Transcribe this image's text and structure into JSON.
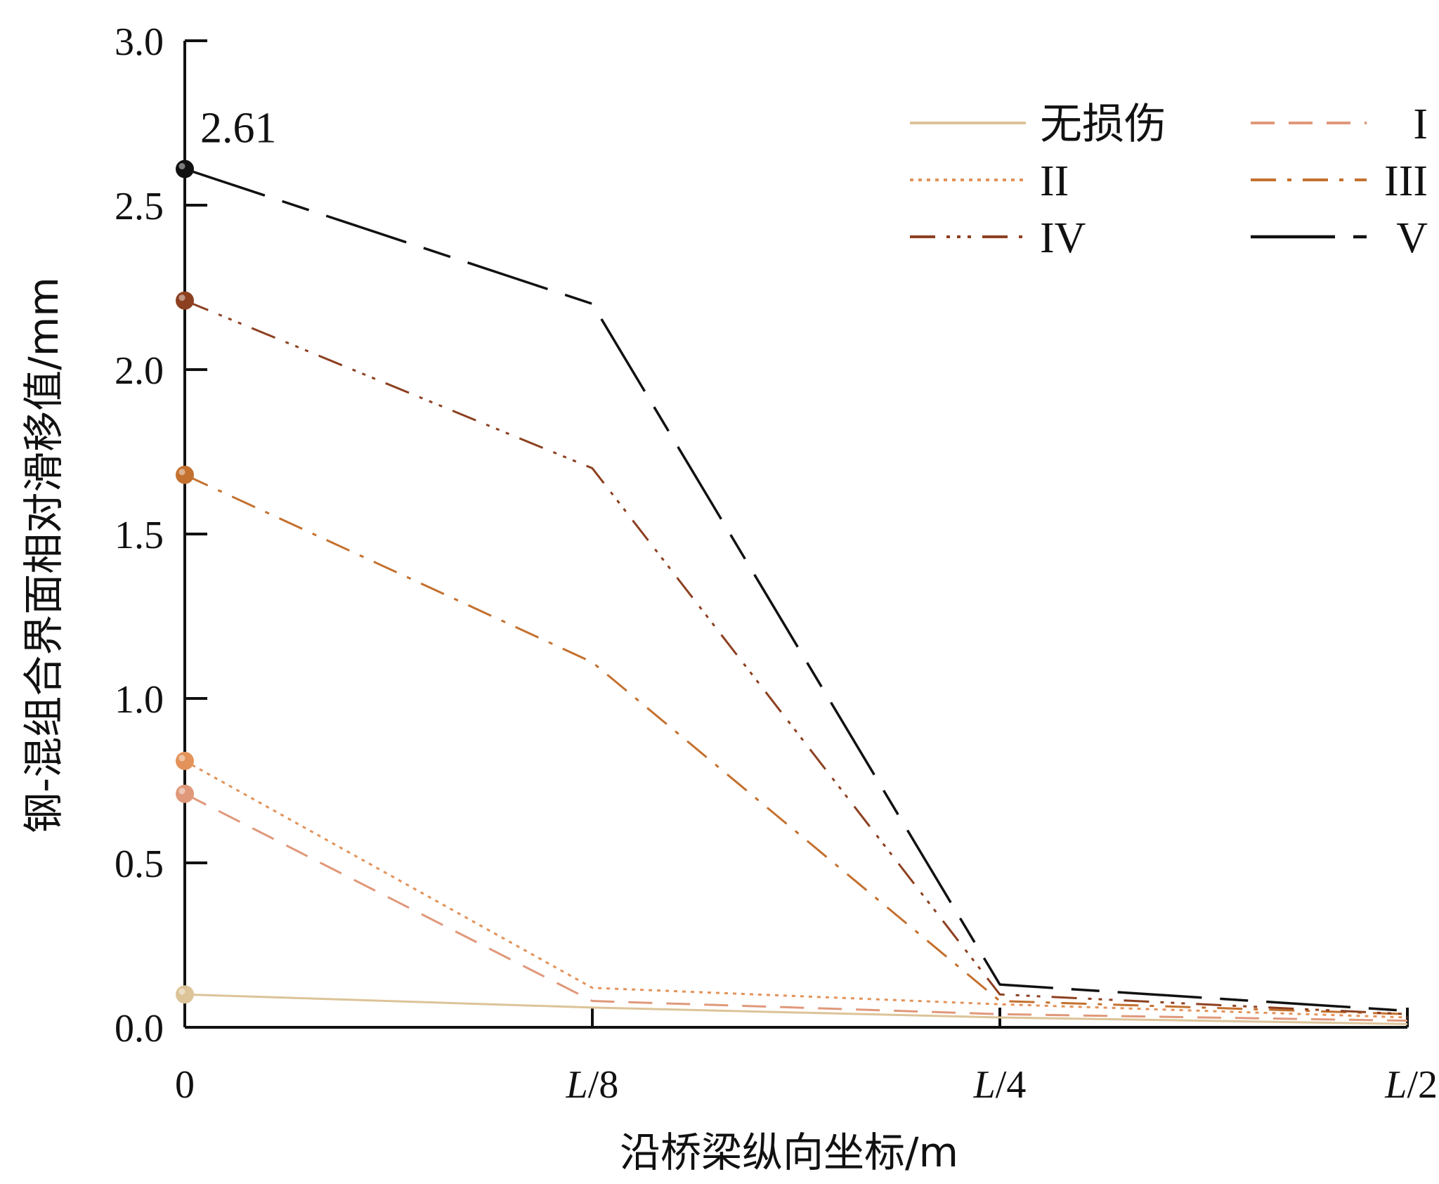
{
  "chart_data": {
    "type": "line",
    "title": "",
    "xlabel": "沿桥梁纵向坐标/m",
    "ylabel": "钢-混组合界面相对滑移值/mm",
    "ylim": [
      0,
      3.0
    ],
    "y_ticks": [
      "0.0",
      "0.5",
      "1.0",
      "1.5",
      "2.0",
      "2.5",
      "3.0"
    ],
    "x_ticks": [
      {
        "italic": "",
        "rest": "0"
      },
      {
        "italic": "L",
        "rest": "/8"
      },
      {
        "italic": "L",
        "rest": "/4"
      },
      {
        "italic": "L",
        "rest": "/2"
      }
    ],
    "categories": [
      "0",
      "L/8",
      "L/4",
      "L/2"
    ],
    "series": [
      {
        "name": "无损伤",
        "values": [
          0.1,
          0.06,
          0.03,
          0.01
        ],
        "color": "#dcc398",
        "dash": "",
        "width": 3
      },
      {
        "name": "I",
        "values": [
          0.71,
          0.08,
          0.04,
          0.02
        ],
        "color": "#e0987a",
        "dash": "34,20",
        "width": 3
      },
      {
        "name": "II",
        "values": [
          0.81,
          0.12,
          0.07,
          0.03
        ],
        "color": "#e3935a",
        "dash": "5,7",
        "width": 3
      },
      {
        "name": "III",
        "values": [
          1.68,
          1.11,
          0.08,
          0.04
        ],
        "color": "#c4702e",
        "dash": "36,16,6,16",
        "width": 3
      },
      {
        "name": "IV",
        "values": [
          2.21,
          1.7,
          0.1,
          0.04
        ],
        "color": "#8c4020",
        "dash": "36,16,5,10,5,10,5,16",
        "width": 3
      },
      {
        "name": "V",
        "values": [
          2.61,
          2.2,
          0.13,
          0.05
        ],
        "color": "#111111",
        "dash": "120,26,40,26",
        "width": 3.5
      }
    ],
    "annotation": "2.61",
    "legend_position": "top-right",
    "grid": false
  }
}
